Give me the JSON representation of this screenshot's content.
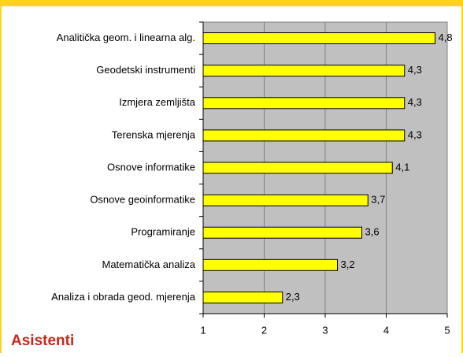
{
  "chart_data": {
    "type": "barh",
    "categories": [
      "Analitička geom. i linearna alg.",
      "Geodetski instrumenti",
      "Izmjera zemljišta",
      "Terenska mjerenja",
      "Osnove informatike",
      "Osnove geoinformatike",
      "Programiranje",
      "Matematička analiza",
      "Analiza i obrada geod. mjerenja"
    ],
    "values": [
      4.8,
      4.3,
      4.3,
      4.3,
      4.1,
      3.7,
      3.6,
      3.2,
      2.3
    ],
    "value_labels": [
      "4,8",
      "4,3",
      "4,3",
      "4,3",
      "4,1",
      "3,7",
      "3,6",
      "3,2",
      "2,3"
    ],
    "color": "#ffff00",
    "xlim": [
      1,
      5
    ],
    "xticks": [
      1,
      2,
      3,
      4,
      5
    ],
    "grid": true,
    "annotation": "Asistenti"
  }
}
